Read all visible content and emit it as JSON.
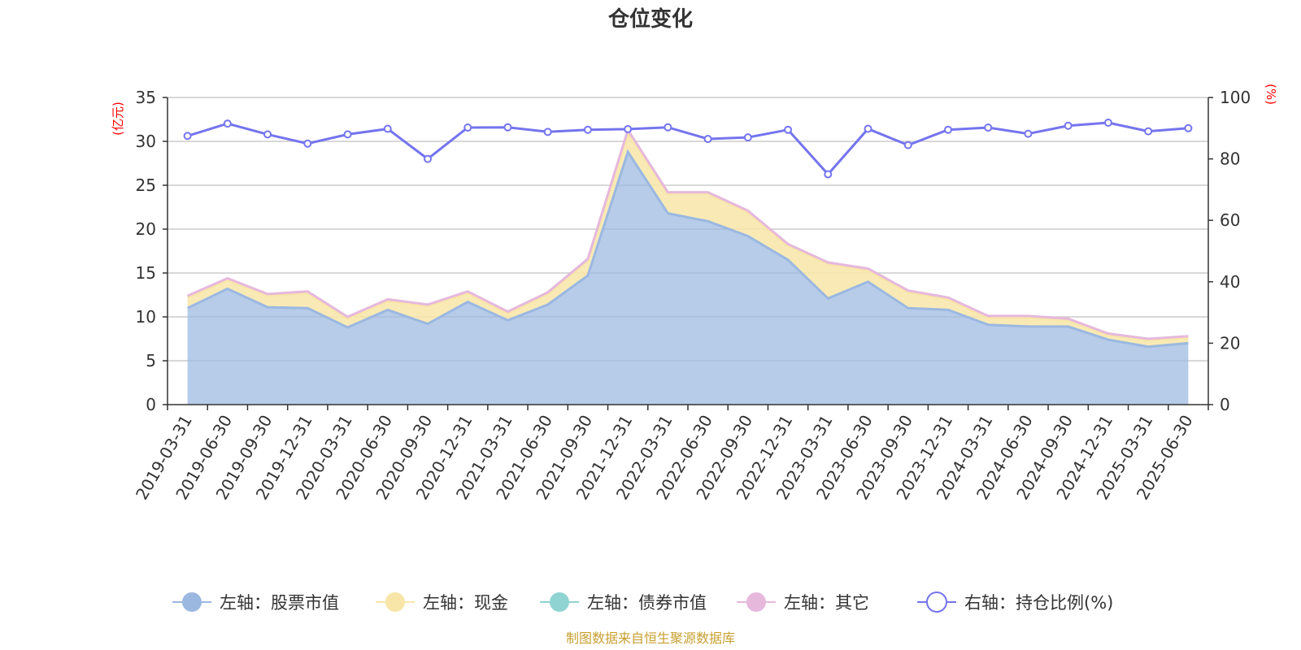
{
  "chart_data": {
    "type": "area",
    "title": "仓位变化",
    "left_axis_unit": "(亿元)",
    "right_axis_unit": "(%)",
    "ylim_left": [
      0,
      35
    ],
    "yticks_left": [
      "0",
      "5",
      "10",
      "15",
      "20",
      "25",
      "30",
      "35"
    ],
    "ylim_right": [
      0,
      100
    ],
    "yticks_right": [
      "0",
      "20",
      "40",
      "60",
      "80",
      "100"
    ],
    "grid": true,
    "legend_position": "bottom",
    "categories": [
      "2019-03-31",
      "2019-06-30",
      "2019-09-30",
      "2019-12-31",
      "2020-03-31",
      "2020-06-30",
      "2020-09-30",
      "2020-12-31",
      "2021-03-31",
      "2021-06-30",
      "2021-09-30",
      "2021-12-31",
      "2022-03-31",
      "2022-06-30",
      "2022-09-30",
      "2022-12-31",
      "2023-03-31",
      "2023-06-30",
      "2023-09-30",
      "2023-12-31",
      "2024-03-31",
      "2024-06-30",
      "2024-09-30",
      "2024-12-31",
      "2025-03-31",
      "2025-06-30"
    ],
    "series": [
      {
        "name": "左轴：股票市值",
        "axis": "left",
        "color": "#9bb8e1",
        "values": [
          11.0,
          13.2,
          11.1,
          11.0,
          8.8,
          10.8,
          9.2,
          11.7,
          9.6,
          11.4,
          14.7,
          28.8,
          21.8,
          20.9,
          19.2,
          16.5,
          12.1,
          14.0,
          11.0,
          10.8,
          9.1,
          8.9,
          8.9,
          7.4,
          6.6,
          7.0
        ]
      },
      {
        "name": "左轴：现金",
        "axis": "left",
        "color": "#f8e6a8",
        "values": [
          1.2,
          1.0,
          1.3,
          1.7,
          1.0,
          1.0,
          2.0,
          1.0,
          0.8,
          1.2,
          1.7,
          2.2,
          2.2,
          3.1,
          2.7,
          1.6,
          3.9,
          1.3,
          1.8,
          1.2,
          0.8,
          1.0,
          0.7,
          0.5,
          0.7,
          0.6
        ]
      },
      {
        "name": "左轴：债券市值",
        "axis": "left",
        "color": "#8fd3d3",
        "values": [
          0,
          0,
          0,
          0,
          0,
          0,
          0,
          0,
          0,
          0,
          0,
          0,
          0,
          0,
          0,
          0,
          0,
          0,
          0,
          0,
          0,
          0,
          0,
          0,
          0,
          0
        ]
      },
      {
        "name": "左轴：其它",
        "axis": "left",
        "color": "#e6b8dc",
        "values": [
          0.2,
          0.2,
          0.2,
          0.2,
          0.2,
          0.2,
          0.2,
          0.2,
          0.2,
          0.2,
          0.2,
          0.3,
          0.2,
          0.2,
          0.2,
          0.2,
          0.2,
          0.2,
          0.2,
          0.2,
          0.2,
          0.2,
          0.2,
          0.2,
          0.2,
          0.2
        ]
      },
      {
        "name": "右轴：持仓比例(%)",
        "axis": "right",
        "color": "#7474ee",
        "values": [
          87.5,
          91.5,
          88.0,
          85.0,
          88.0,
          89.8,
          80.0,
          90.2,
          90.3,
          88.8,
          89.5,
          89.7,
          90.3,
          86.5,
          87.0,
          89.5,
          75.0,
          89.8,
          84.5,
          89.5,
          90.2,
          88.2,
          90.8,
          91.8,
          89.0,
          90.0
        ]
      }
    ],
    "source_note": "制图数据来自恒生聚源数据库"
  }
}
